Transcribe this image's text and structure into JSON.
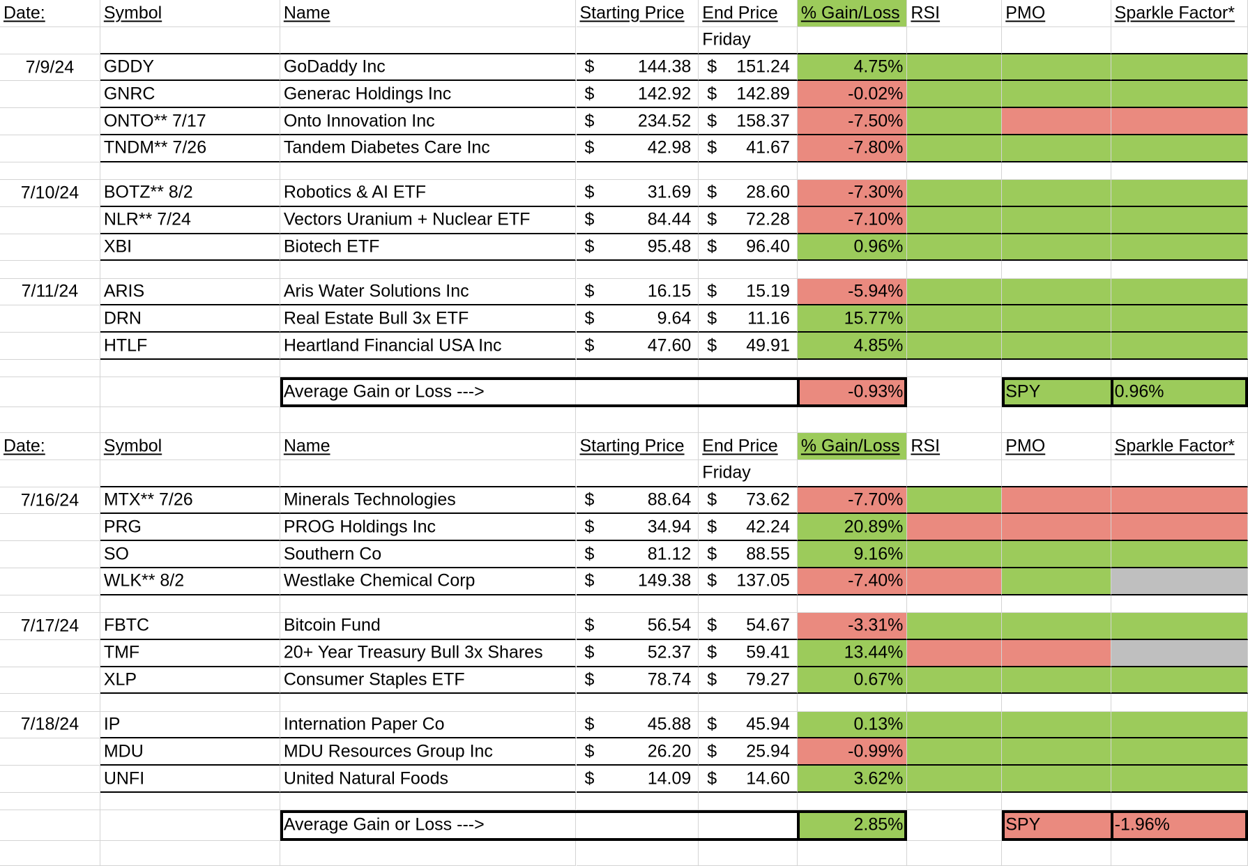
{
  "columns": [
    "Date:",
    "Symbol",
    "Name",
    "Starting Price",
    "End Price",
    "% Gain/Loss",
    "RSI",
    "PMO",
    "Sparkle Factor*"
  ],
  "subheader": "Friday",
  "currency_symbol": "$",
  "average_label": "Average Gain or Loss --->",
  "benchmark_label": "SPY",
  "colors": {
    "gain": "#9ccb5b",
    "loss": "#ea8a7f",
    "neutral": "#bfbfbf"
  },
  "sections": [
    {
      "groups": [
        {
          "date": "7/9/24",
          "rows": [
            {
              "symbol": "GDDY",
              "name": "GoDaddy Inc",
              "start": "144.38",
              "end": "151.24",
              "pct": "4.75%",
              "pct_c": "g",
              "rsi": "g",
              "pmo": "g",
              "spk": "g"
            },
            {
              "symbol": "GNRC",
              "name": "Generac Holdings Inc",
              "start": "142.92",
              "end": "142.89",
              "pct": "-0.02%",
              "pct_c": "r",
              "rsi": "g",
              "pmo": "g",
              "spk": "g"
            },
            {
              "symbol": "ONTO** 7/17",
              "name": "Onto Innovation Inc",
              "start": "234.52",
              "end": "158.37",
              "pct": "-7.50%",
              "pct_c": "r",
              "rsi": "g",
              "pmo": "r",
              "spk": "r"
            },
            {
              "symbol": "TNDM** 7/26",
              "name": "Tandem Diabetes Care Inc",
              "start": "42.98",
              "end": "41.67",
              "pct": "-7.80%",
              "pct_c": "r",
              "rsi": "g",
              "pmo": "g",
              "spk": "g"
            }
          ]
        },
        {
          "date": "7/10/24",
          "rows": [
            {
              "symbol": "BOTZ** 8/2",
              "name": "Robotics & AI ETF",
              "start": "31.69",
              "end": "28.60",
              "pct": "-7.30%",
              "pct_c": "r",
              "rsi": "g",
              "pmo": "g",
              "spk": "g"
            },
            {
              "symbol": "NLR** 7/24",
              "name": "Vectors Uranium + Nuclear ETF",
              "start": "84.44",
              "end": "72.28",
              "pct": "-7.10%",
              "pct_c": "r",
              "rsi": "g",
              "pmo": "g",
              "spk": "g"
            },
            {
              "symbol": "XBI",
              "name": "Biotech ETF",
              "start": "95.48",
              "end": "96.40",
              "pct": "0.96%",
              "pct_c": "g",
              "rsi": "g",
              "pmo": "g",
              "spk": "g"
            }
          ]
        },
        {
          "date": "7/11/24",
          "rows": [
            {
              "symbol": "ARIS",
              "name": "Aris Water Solutions Inc",
              "start": "16.15",
              "end": "15.19",
              "pct": "-5.94%",
              "pct_c": "r",
              "rsi": "g",
              "pmo": "g",
              "spk": "g"
            },
            {
              "symbol": "DRN",
              "name": "Real Estate Bull 3x ETF",
              "start": "9.64",
              "end": "11.16",
              "pct": "15.77%",
              "pct_c": "g",
              "rsi": "g",
              "pmo": "g",
              "spk": "g"
            },
            {
              "symbol": "HTLF",
              "name": "Heartland Financial USA Inc",
              "start": "47.60",
              "end": "49.91",
              "pct": "4.85%",
              "pct_c": "g",
              "rsi": "g",
              "pmo": "g",
              "spk": "g"
            }
          ]
        }
      ],
      "average": "-0.93%",
      "average_c": "r",
      "spy": "0.96%",
      "spy_c": "g"
    },
    {
      "groups": [
        {
          "date": "7/16/24",
          "rows": [
            {
              "symbol": "MTX** 7/26",
              "name": "Minerals Technologies",
              "start": "88.64",
              "end": "73.62",
              "pct": "-7.70%",
              "pct_c": "r",
              "rsi": "g",
              "pmo": "r",
              "spk": "r"
            },
            {
              "symbol": "PRG",
              "name": "PROG Holdings Inc",
              "start": "34.94",
              "end": "42.24",
              "pct": "20.89%",
              "pct_c": "g",
              "rsi": "r",
              "pmo": "r",
              "spk": "r"
            },
            {
              "symbol": "SO",
              "name": "Southern Co",
              "start": "81.12",
              "end": "88.55",
              "pct": "9.16%",
              "pct_c": "g",
              "rsi": "g",
              "pmo": "g",
              "spk": "g"
            },
            {
              "symbol": "WLK** 8/2",
              "name": "Westlake Chemical Corp",
              "start": "149.38",
              "end": "137.05",
              "pct": "-7.40%",
              "pct_c": "r",
              "rsi": "r",
              "pmo": "g",
              "spk": "n"
            }
          ]
        },
        {
          "date": "7/17/24",
          "rows": [
            {
              "symbol": "FBTC",
              "name": "Bitcoin Fund",
              "start": "56.54",
              "end": "54.67",
              "pct": "-3.31%",
              "pct_c": "r",
              "rsi": "g",
              "pmo": "g",
              "spk": "g"
            },
            {
              "symbol": "TMF",
              "name": "20+ Year Treasury Bull 3x Shares",
              "start": "52.37",
              "end": "59.41",
              "pct": "13.44%",
              "pct_c": "g",
              "rsi": "r",
              "pmo": "r",
              "spk": "n"
            },
            {
              "symbol": "XLP",
              "name": "Consumer Staples ETF",
              "start": "78.74",
              "end": "79.27",
              "pct": "0.67%",
              "pct_c": "g",
              "rsi": "g",
              "pmo": "g",
              "spk": "g"
            }
          ]
        },
        {
          "date": "7/18/24",
          "rows": [
            {
              "symbol": "IP",
              "name": "Internation Paper Co",
              "start": "45.88",
              "end": "45.94",
              "pct": "0.13%",
              "pct_c": "g",
              "rsi": "g",
              "pmo": "g",
              "spk": "g"
            },
            {
              "symbol": "MDU",
              "name": "MDU Resources Group Inc",
              "start": "26.20",
              "end": "25.94",
              "pct": "-0.99%",
              "pct_c": "r",
              "rsi": "g",
              "pmo": "g",
              "spk": "g"
            },
            {
              "symbol": "UNFI",
              "name": "United Natural Foods",
              "start": "14.09",
              "end": "14.60",
              "pct": "3.62%",
              "pct_c": "g",
              "rsi": "g",
              "pmo": "g",
              "spk": "g"
            }
          ]
        }
      ],
      "average": "2.85%",
      "average_c": "g",
      "spy": "-1.96%",
      "spy_c": "r"
    }
  ]
}
